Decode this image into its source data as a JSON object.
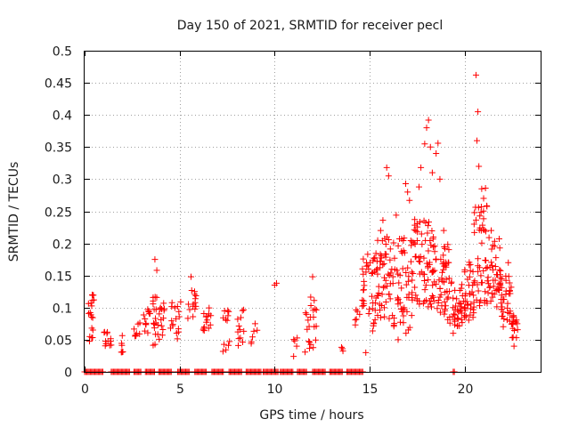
{
  "chart_data": {
    "type": "scatter",
    "title": "Day 150 of 2021, SRMTID for receiver pecl",
    "xlabel": "GPS time / hours",
    "ylabel": "SRMTID / TECUs",
    "xlim": [
      0,
      24
    ],
    "ylim": [
      0,
      0.5
    ],
    "xticks": [
      0,
      5,
      10,
      15,
      20
    ],
    "xtick_labels": [
      "0",
      "5",
      "10",
      "15",
      "20"
    ],
    "yticks": [
      0,
      0.05,
      0.1,
      0.15,
      0.2,
      0.25,
      0.3,
      0.35,
      0.4,
      0.45,
      0.5
    ],
    "ytick_labels": [
      "0",
      "0.05",
      "0.1",
      "0.15",
      "0.2",
      "0.25",
      "0.3",
      "0.35",
      "0.4",
      "0.45",
      "0.5"
    ],
    "grid": true,
    "marker": "+",
    "color": "#ff0000",
    "clusters": [
      {
        "x_range": [
          0.2,
          0.5
        ],
        "y_range": [
          0.04,
          0.12
        ],
        "count": 18
      },
      {
        "x_range": [
          1.0,
          1.5
        ],
        "y_range": [
          0.04,
          0.07
        ],
        "count": 12
      },
      {
        "x_range": [
          1.9,
          2.2
        ],
        "y_range": [
          0.03,
          0.06
        ],
        "count": 6
      },
      {
        "x_range": [
          2.6,
          3.0
        ],
        "y_range": [
          0.05,
          0.09
        ],
        "count": 8
      },
      {
        "x_range": [
          3.1,
          3.5
        ],
        "y_range": [
          0.06,
          0.1
        ],
        "count": 12
      },
      {
        "x_range": [
          3.6,
          4.2
        ],
        "y_range": [
          0.04,
          0.12
        ],
        "count": 30
      },
      {
        "x_range": [
          4.5,
          5.1
        ],
        "y_range": [
          0.05,
          0.11
        ],
        "count": 16
      },
      {
        "x_range": [
          5.4,
          5.9
        ],
        "y_range": [
          0.08,
          0.13
        ],
        "count": 14
      },
      {
        "x_range": [
          6.2,
          6.7
        ],
        "y_range": [
          0.05,
          0.1
        ],
        "count": 14
      },
      {
        "x_range": [
          7.2,
          7.7
        ],
        "y_range": [
          0.03,
          0.1
        ],
        "count": 12
      },
      {
        "x_range": [
          8.0,
          8.4
        ],
        "y_range": [
          0.03,
          0.1
        ],
        "count": 12
      },
      {
        "x_range": [
          8.7,
          9.1
        ],
        "y_range": [
          0.04,
          0.08
        ],
        "count": 6
      },
      {
        "x_range": [
          11.0,
          11.2
        ],
        "y_range": [
          0.03,
          0.06
        ],
        "count": 4
      },
      {
        "x_range": [
          11.6,
          12.2
        ],
        "y_range": [
          0.03,
          0.13
        ],
        "count": 22
      },
      {
        "x_range": [
          13.5,
          13.7
        ],
        "y_range": [
          0.03,
          0.04
        ],
        "count": 3
      },
      {
        "x_range": [
          14.2,
          14.5
        ],
        "y_range": [
          0.07,
          0.1
        ],
        "count": 6
      },
      {
        "x_range": [
          14.6,
          15.4
        ],
        "y_range": [
          0.06,
          0.19
        ],
        "count": 40
      },
      {
        "x_range": [
          15.4,
          16.2
        ],
        "y_range": [
          0.08,
          0.22
        ],
        "count": 50
      },
      {
        "x_range": [
          16.2,
          17.3
        ],
        "y_range": [
          0.06,
          0.21
        ],
        "count": 60
      },
      {
        "x_range": [
          17.3,
          18.4
        ],
        "y_range": [
          0.1,
          0.24
        ],
        "count": 70
      },
      {
        "x_range": [
          18.4,
          19.2
        ],
        "y_range": [
          0.08,
          0.2
        ],
        "count": 50
      },
      {
        "x_range": [
          19.2,
          20.0
        ],
        "y_range": [
          0.07,
          0.14
        ],
        "count": 40
      },
      {
        "x_range": [
          20.0,
          20.5
        ],
        "y_range": [
          0.08,
          0.18
        ],
        "count": 35
      },
      {
        "x_range": [
          20.5,
          21.2
        ],
        "y_range": [
          0.1,
          0.26
        ],
        "count": 45
      },
      {
        "x_range": [
          21.2,
          21.9
        ],
        "y_range": [
          0.1,
          0.21
        ],
        "count": 40
      },
      {
        "x_range": [
          21.9,
          22.5
        ],
        "y_range": [
          0.07,
          0.15
        ],
        "count": 35
      },
      {
        "x_range": [
          22.5,
          22.8
        ],
        "y_range": [
          0.05,
          0.09
        ],
        "count": 15
      }
    ],
    "highlight_points": [
      {
        "x": 0.4,
        "y": 0.12
      },
      {
        "x": 3.7,
        "y": 0.175
      },
      {
        "x": 3.8,
        "y": 0.158
      },
      {
        "x": 5.6,
        "y": 0.148
      },
      {
        "x": 10.0,
        "y": 0.135
      },
      {
        "x": 10.1,
        "y": 0.138
      },
      {
        "x": 11.0,
        "y": 0.024
      },
      {
        "x": 12.0,
        "y": 0.148
      },
      {
        "x": 14.9,
        "y": 0.183
      },
      {
        "x": 15.9,
        "y": 0.318
      },
      {
        "x": 16.0,
        "y": 0.305
      },
      {
        "x": 15.7,
        "y": 0.236
      },
      {
        "x": 16.4,
        "y": 0.244
      },
      {
        "x": 16.9,
        "y": 0.293
      },
      {
        "x": 17.0,
        "y": 0.28
      },
      {
        "x": 17.1,
        "y": 0.267
      },
      {
        "x": 17.6,
        "y": 0.288
      },
      {
        "x": 17.7,
        "y": 0.318
      },
      {
        "x": 17.9,
        "y": 0.355
      },
      {
        "x": 18.0,
        "y": 0.38
      },
      {
        "x": 18.1,
        "y": 0.392
      },
      {
        "x": 18.2,
        "y": 0.35
      },
      {
        "x": 18.3,
        "y": 0.31
      },
      {
        "x": 18.5,
        "y": 0.34
      },
      {
        "x": 18.6,
        "y": 0.356
      },
      {
        "x": 18.7,
        "y": 0.3
      },
      {
        "x": 18.9,
        "y": 0.22
      },
      {
        "x": 20.5,
        "y": 0.23
      },
      {
        "x": 20.6,
        "y": 0.462
      },
      {
        "x": 20.7,
        "y": 0.405
      },
      {
        "x": 20.65,
        "y": 0.36
      },
      {
        "x": 20.75,
        "y": 0.32
      },
      {
        "x": 20.9,
        "y": 0.285
      },
      {
        "x": 21.0,
        "y": 0.27
      },
      {
        "x": 21.1,
        "y": 0.286
      },
      {
        "x": 21.4,
        "y": 0.22
      },
      {
        "x": 22.3,
        "y": 0.17
      },
      {
        "x": 22.6,
        "y": 0.04
      },
      {
        "x": 14.8,
        "y": 0.03
      },
      {
        "x": 16.5,
        "y": 0.05
      },
      {
        "x": 19.4,
        "y": 0.06
      }
    ],
    "zero_baseline": {
      "y": 0,
      "segments": [
        [
          0.0,
          1.0
        ],
        [
          1.4,
          2.4
        ],
        [
          2.6,
          3.0
        ],
        [
          3.2,
          3.7
        ],
        [
          3.9,
          4.6
        ],
        [
          4.9,
          5.5
        ],
        [
          5.8,
          6.4
        ],
        [
          6.7,
          7.3
        ],
        [
          7.6,
          8.3
        ],
        [
          8.5,
          9.3
        ],
        [
          9.4,
          10.2
        ],
        [
          10.3,
          11.0
        ],
        [
          11.2,
          11.7
        ],
        [
          12.0,
          12.7
        ],
        [
          12.9,
          13.6
        ],
        [
          13.8,
          14.7
        ],
        [
          19.4,
          19.5
        ]
      ]
    }
  }
}
